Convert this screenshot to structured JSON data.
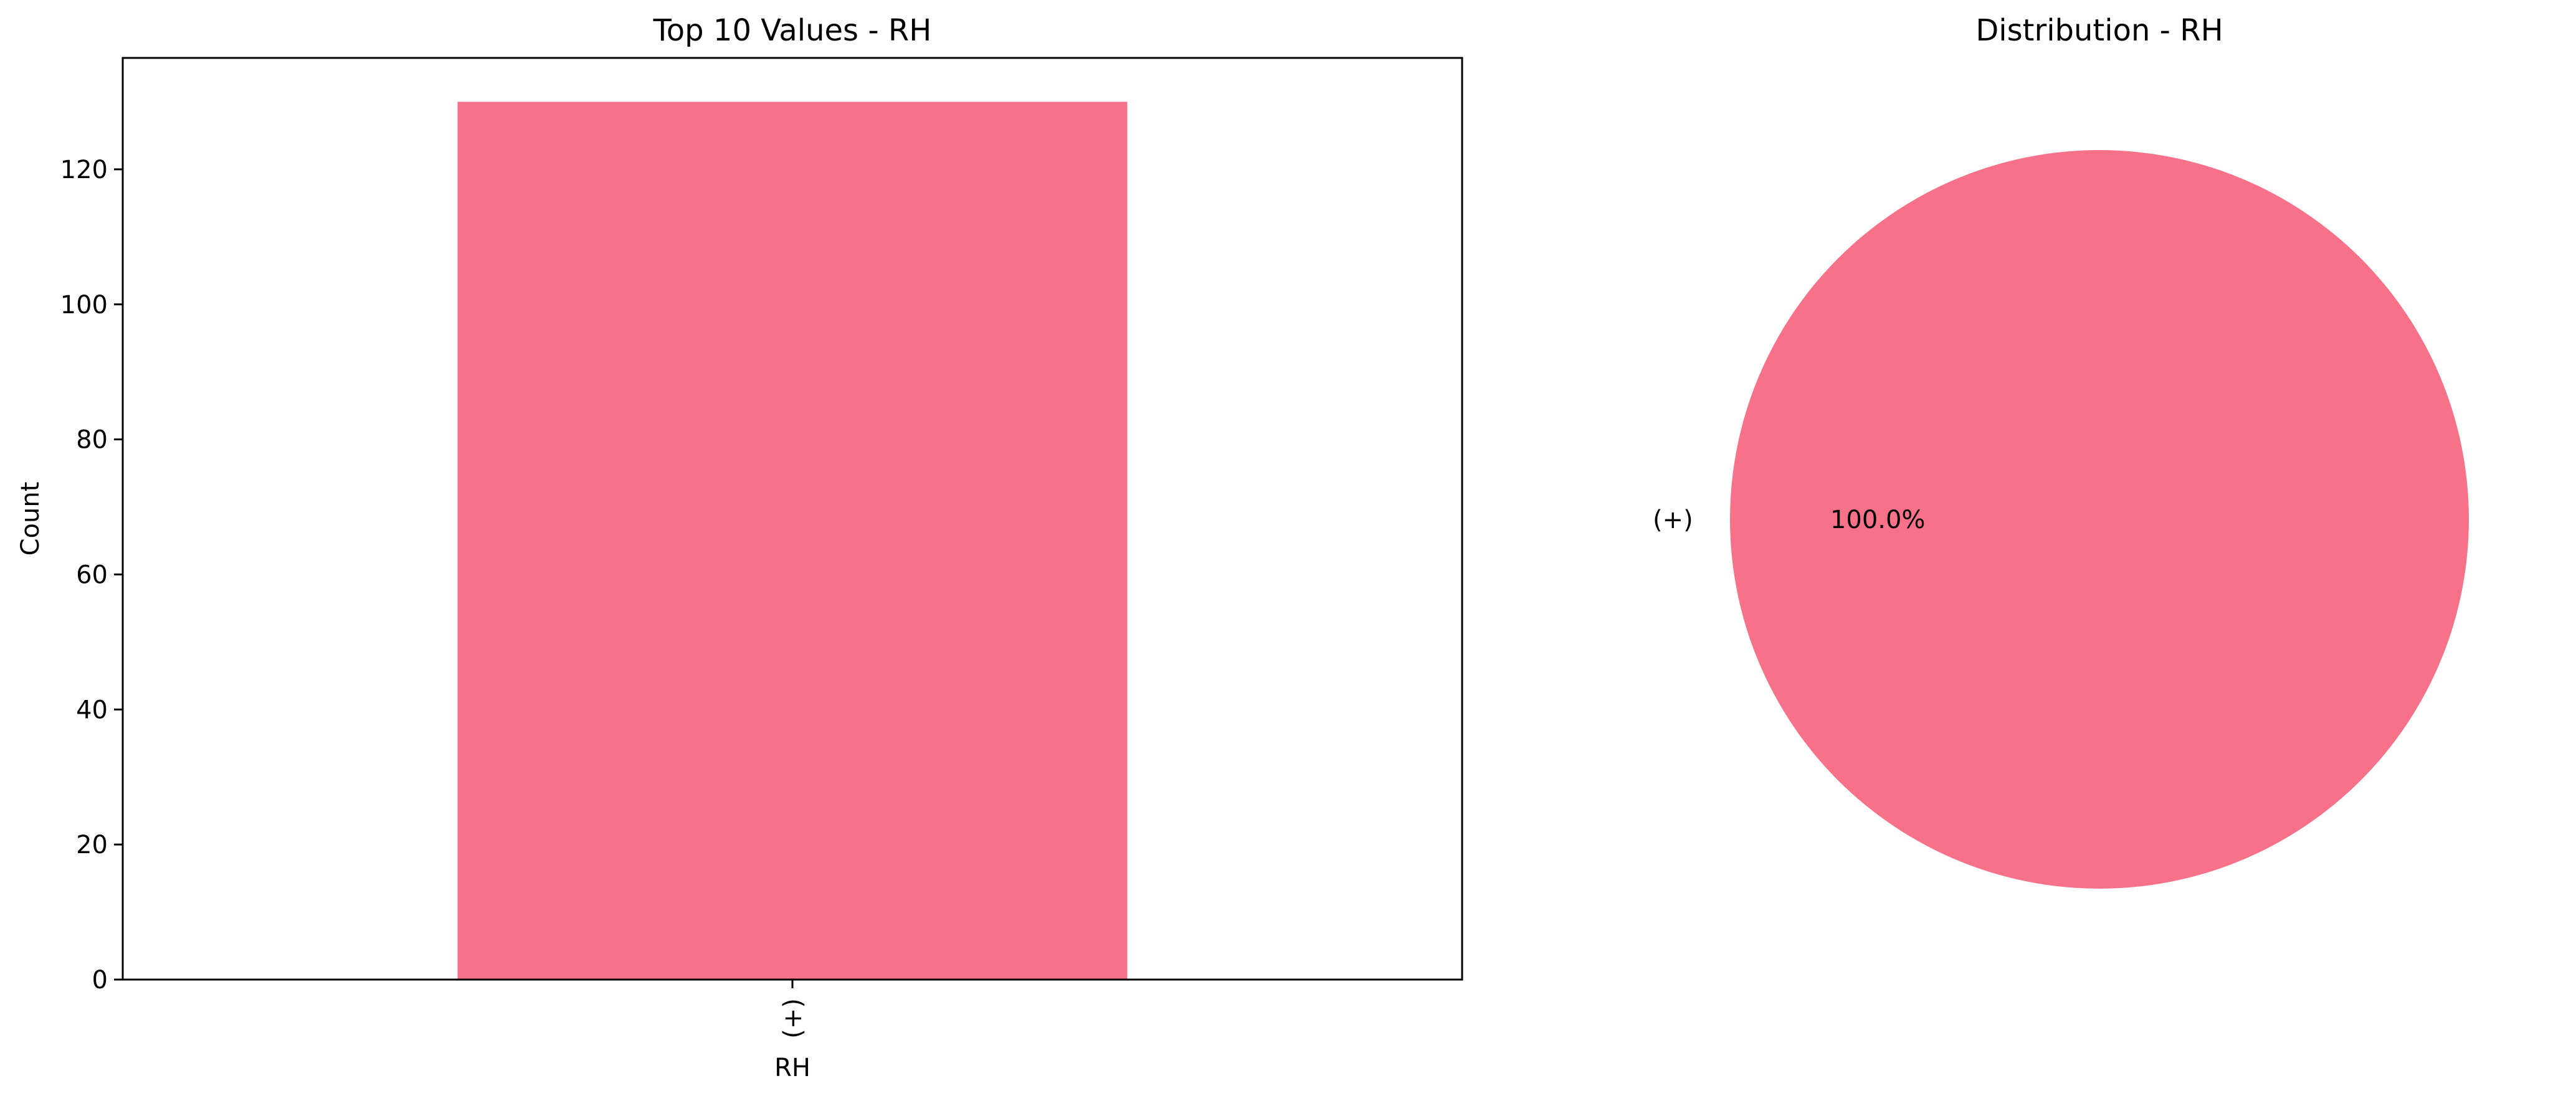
{
  "chart_data": [
    {
      "type": "bar",
      "title": "Top 10 Values - RH",
      "categories": [
        "(+)"
      ],
      "values": [
        130
      ],
      "xlabel": "RH",
      "ylabel": "Count",
      "ylim": [
        0,
        136.5
      ],
      "yticks": [
        0,
        20,
        40,
        60,
        80,
        100,
        120
      ],
      "grid": false,
      "color": "#f77189"
    },
    {
      "type": "pie",
      "title": "Distribution - RH",
      "labels": [
        "(+)"
      ],
      "values": [
        130
      ],
      "percent_labels": [
        "100.0%"
      ],
      "color": "#f77189"
    }
  ]
}
